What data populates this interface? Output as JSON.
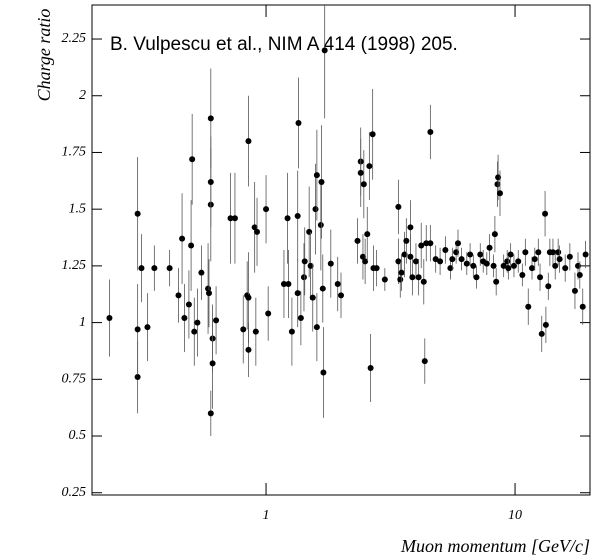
{
  "chart_data": {
    "type": "scatter",
    "annotation": "B. Vulpescu et al., NIM A 414 (1998) 205.",
    "ylabel": "Charge ratio",
    "xlabel": "Muon momentum [GeV/c]",
    "xlog": true,
    "color": "#000000",
    "xlim": [
      0.2,
      20
    ],
    "ylim": [
      0.24,
      2.4
    ],
    "xticks": [
      1,
      10
    ],
    "yticks": [
      0.25,
      0.5,
      0.75,
      1,
      1.25,
      1.5,
      1.75,
      2,
      2.25
    ],
    "x": [
      0.235,
      0.305,
      0.305,
      0.305,
      0.316,
      0.334,
      0.356,
      0.41,
      0.445,
      0.46,
      0.47,
      0.49,
      0.5,
      0.505,
      0.515,
      0.53,
      0.55,
      0.585,
      0.59,
      0.6,
      0.6,
      0.6,
      0.61,
      0.61,
      0.6,
      0.63,
      0.72,
      0.75,
      0.81,
      0.84,
      0.85,
      0.85,
      0.85,
      0.9,
      0.91,
      0.92,
      1.0,
      1.02,
      1.18,
      1.22,
      1.23,
      1.27,
      1.34,
      1.34,
      1.35,
      1.38,
      1.42,
      1.43,
      1.49,
      1.51,
      1.54,
      1.58,
      1.6,
      1.6,
      1.66,
      1.67,
      1.69,
      1.7,
      1.72,
      1.82,
      1.94,
      2.0,
      2.33,
      2.4,
      2.4,
      2.45,
      2.47,
      2.5,
      2.55,
      2.6,
      2.63,
      2.68,
      2.7,
      2.78,
      3.0,
      3.4,
      3.4,
      3.46,
      3.5,
      3.6,
      3.66,
      3.8,
      3.8,
      3.87,
      4.0,
      4.1,
      4.2,
      4.3,
      4.34,
      4.4,
      4.57,
      4.57,
      4.8,
      5.0,
      5.25,
      5.5,
      5.6,
      5.8,
      5.9,
      6.1,
      6.4,
      6.6,
      6.8,
      7.0,
      7.25,
      7.45,
      7.7,
      7.9,
      8.2,
      8.3,
      8.4,
      8.5,
      8.55,
      8.7,
      9.0,
      9.3,
      9.4,
      9.6,
      9.9,
      10.3,
      10.7,
      11.0,
      11.3,
      11.7,
      12.0,
      12.4,
      12.6,
      12.8,
      13.2,
      13.3,
      13.6,
      13.8,
      14.2,
      14.5,
      14.9,
      15.1,
      15.9,
      16.6,
      17.4,
      17.9,
      18.2,
      18.7,
      19.2
    ],
    "values": [
      1.02,
      1.48,
      0.76,
      0.97,
      1.24,
      0.98,
      1.24,
      1.24,
      1.12,
      1.37,
      1.02,
      1.08,
      1.34,
      1.72,
      0.96,
      1.0,
      1.22,
      1.15,
      1.13,
      1.9,
      1.52,
      1.62,
      0.93,
      0.82,
      0.6,
      1.01,
      1.46,
      1.46,
      0.97,
      1.12,
      1.8,
      0.88,
      1.11,
      1.42,
      0.96,
      1.4,
      1.5,
      1.04,
      1.17,
      1.46,
      1.17,
      0.96,
      1.13,
      1.47,
      1.88,
      1.02,
      1.2,
      1.27,
      1.4,
      1.25,
      1.11,
      1.5,
      1.65,
      0.98,
      1.43,
      1.62,
      1.15,
      0.78,
      2.2,
      1.26,
      1.17,
      1.12,
      1.36,
      1.71,
      1.66,
      1.29,
      1.61,
      1.27,
      1.39,
      1.69,
      0.8,
      1.83,
      1.24,
      1.24,
      1.19,
      1.27,
      1.51,
      1.19,
      1.22,
      1.3,
      1.36,
      1.42,
      1.29,
      1.2,
      1.27,
      1.2,
      1.34,
      1.18,
      0.83,
      1.35,
      1.84,
      1.35,
      1.28,
      1.27,
      1.32,
      1.24,
      1.28,
      1.31,
      1.35,
      1.28,
      1.26,
      1.3,
      1.25,
      1.2,
      1.3,
      1.27,
      1.26,
      1.33,
      1.25,
      1.39,
      1.18,
      1.61,
      1.64,
      1.57,
      1.25,
      1.27,
      1.24,
      1.3,
      1.25,
      1.27,
      1.21,
      1.31,
      1.07,
      1.24,
      1.28,
      1.31,
      1.2,
      0.95,
      1.48,
      0.99,
      1.16,
      1.31,
      1.31,
      1.25,
      1.31,
      1.28,
      1.24,
      1.29,
      1.14,
      1.25,
      1.21,
      1.07,
      1.3
    ],
    "errors": [
      0.17,
      0.25,
      0.16,
      0.2,
      0.15,
      0.15,
      0.1,
      0.08,
      0.12,
      0.2,
      0.15,
      0.15,
      0.2,
      0.2,
      0.15,
      0.15,
      0.12,
      0.2,
      0.15,
      0.22,
      0.25,
      0.2,
      0.15,
      0.2,
      0.1,
      0.15,
      0.2,
      0.2,
      0.15,
      0.15,
      0.2,
      0.12,
      0.2,
      0.2,
      0.15,
      0.15,
      0.15,
      0.12,
      0.15,
      0.2,
      0.15,
      0.15,
      0.15,
      0.2,
      0.2,
      0.12,
      0.15,
      0.15,
      0.2,
      0.15,
      0.15,
      0.2,
      0.2,
      0.15,
      0.2,
      0.25,
      0.15,
      0.2,
      0.3,
      0.15,
      0.12,
      0.1,
      0.1,
      0.15,
      0.15,
      0.1,
      0.15,
      0.1,
      0.12,
      0.15,
      0.15,
      0.2,
      0.1,
      0.08,
      0.05,
      0.1,
      0.12,
      0.08,
      0.08,
      0.1,
      0.1,
      0.12,
      0.1,
      0.08,
      0.08,
      0.08,
      0.1,
      0.1,
      0.1,
      0.08,
      0.12,
      0.08,
      0.06,
      0.06,
      0.06,
      0.05,
      0.05,
      0.05,
      0.06,
      0.05,
      0.05,
      0.05,
      0.05,
      0.05,
      0.05,
      0.05,
      0.05,
      0.06,
      0.05,
      0.08,
      0.06,
      0.1,
      0.1,
      0.1,
      0.05,
      0.05,
      0.05,
      0.05,
      0.05,
      0.05,
      0.05,
      0.06,
      0.08,
      0.05,
      0.05,
      0.06,
      0.06,
      0.08,
      0.1,
      0.08,
      0.06,
      0.06,
      0.06,
      0.06,
      0.06,
      0.06,
      0.06,
      0.06,
      0.08,
      0.06,
      0.06,
      0.08,
      0.06
    ]
  }
}
